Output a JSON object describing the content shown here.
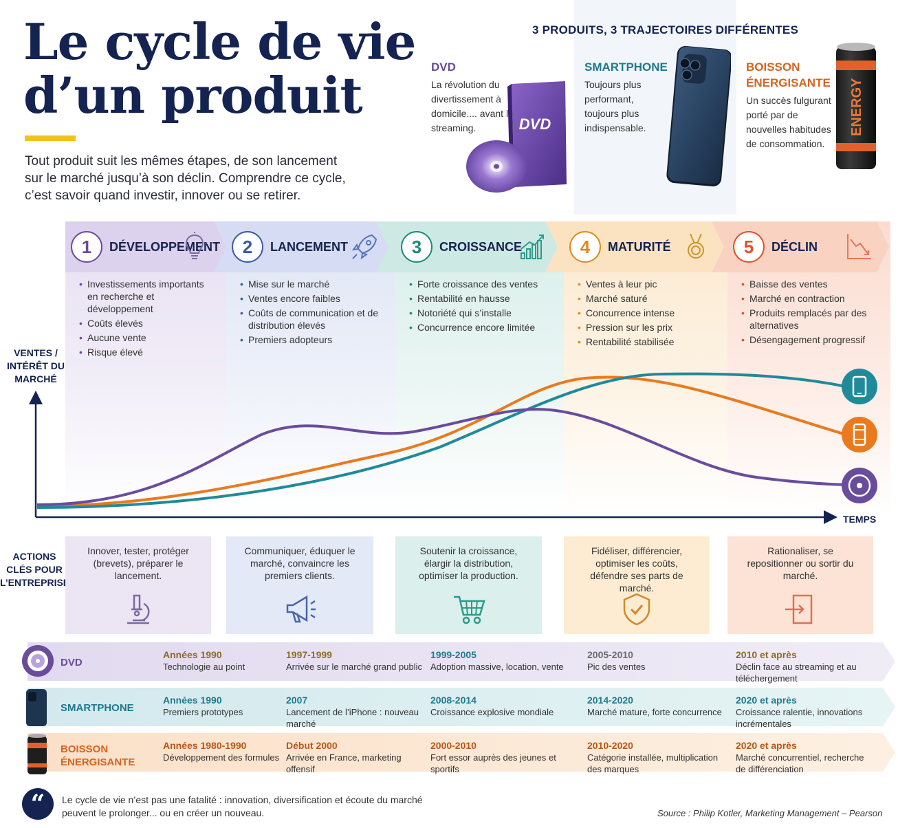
{
  "title": {
    "line1": "Le cycle de vie",
    "line2": "d’un produit"
  },
  "intro": "Tout produit suit les mêmes étapes, de son lancement sur le marché jusqu’à son déclin. Comprendre ce cycle, c’est savoir quand investir, innover ou se retirer.",
  "products": {
    "heading": "3 PRODUITS, 3 TRAJECTOIRES DIFFÉRENTES",
    "dvd": {
      "name": "DVD",
      "desc": "La révolution du divertissement à domicile.... avant le streaming.",
      "box_label": "DVD"
    },
    "smartphone": {
      "name": "SMARTPHONE",
      "desc": "Toujours plus performant, toujours plus indispensable."
    },
    "energy": {
      "name": "BOISSON ÉNERGISANTE",
      "desc": "Un succès fulgurant porté par de nouvelles habitudes de consommation.",
      "can_label": "ENERGY"
    }
  },
  "stages": [
    {
      "num": "1",
      "title": "DÉVELOPPEMENT",
      "icon": "lightbulb-icon",
      "color": "#6a4c9c",
      "bullets": [
        "Investissements importants en recherche et développement",
        "Coûts élevés",
        "Aucune vente",
        "Risque élevé"
      ]
    },
    {
      "num": "2",
      "title": "LANCEMENT",
      "icon": "rocket-icon",
      "color": "#3a5aa8",
      "bullets": [
        "Mise sur le marché",
        "Ventes encore faibles",
        "Coûts de communication et de distribution élevés",
        "Premiers adopteurs"
      ]
    },
    {
      "num": "3",
      "title": "CROISSANCE",
      "icon": "growth-chart-icon",
      "color": "#1f8a7a",
      "bullets": [
        "Forte croissance des ventes",
        "Rentabilité en hausse",
        "Notoriété qui s’installe",
        "Concurrence encore limitée"
      ]
    },
    {
      "num": "4",
      "title": "MATURITÉ",
      "icon": "medal-icon",
      "color": "#e08a1e",
      "bullets": [
        "Ventes à leur pic",
        "Marché saturé",
        "Concurrence intense",
        "Pression sur les prix",
        "Rentabilité stabilisée"
      ]
    },
    {
      "num": "5",
      "title": "DÉCLIN",
      "icon": "decline-chart-icon",
      "color": "#e0522a",
      "bullets": [
        "Baisse des ventes",
        "Marché en contraction",
        "Produits remplacés par des alternatives",
        "Désengagement progressif"
      ]
    }
  ],
  "chart": {
    "y_label": "VENTES / INTÉRÊT DU MARCHÉ",
    "x_label": "TEMPS",
    "series": [
      {
        "name": "DVD",
        "color": "#6a4c9c",
        "icon": "disc-icon"
      },
      {
        "name": "SMARTPHONE",
        "color": "#1f8a9a",
        "icon": "smartphone-icon"
      },
      {
        "name": "BOISSON ÉNERGISANTE",
        "color": "#ea7a1e",
        "icon": "can-icon"
      }
    ]
  },
  "actions": {
    "label": "ACTIONS CLÉS POUR L’ENTREPRISE",
    "items": [
      {
        "text": "Innover, tester, protéger (brevets), préparer le lancement.",
        "icon": "microscope-icon"
      },
      {
        "text": "Communiquer, éduquer le marché, convaincre les premiers clients.",
        "icon": "megaphone-icon"
      },
      {
        "text": "Soutenir la croissance, élargir la distribution, optimiser la production.",
        "icon": "cart-icon"
      },
      {
        "text": "Fidéliser, différencier, optimiser les coûts, défendre ses parts de marché.",
        "icon": "shield-icon"
      },
      {
        "text": "Rationaliser, se repositionner ou sortir du marché.",
        "icon": "exit-icon"
      }
    ]
  },
  "timeline": [
    {
      "name": "DVD",
      "color": "#6a4c9c",
      "cells": [
        {
          "year": "Années 1990",
          "text": "Technologie au point"
        },
        {
          "year": "1997-1999",
          "text": "Arrivée sur le marché grand public"
        },
        {
          "year": "1999-2005",
          "text": "Adoption massive, location, vente"
        },
        {
          "year": "2005-2010",
          "text": "Pic des ventes"
        },
        {
          "year": "2010 et après",
          "text": "Déclin face au streaming et au téléchergement"
        }
      ]
    },
    {
      "name": "SMARTPHONE",
      "color": "#1f7a8c",
      "cells": [
        {
          "year": "Années 1990",
          "text": "Premiers prototypes"
        },
        {
          "year": "2007",
          "text": "Lancement de l’iPhone : nouveau marché"
        },
        {
          "year": "2008-2014",
          "text": "Croissance explosive mondiale"
        },
        {
          "year": "2014-2020",
          "text": "Marché mature, forte concurrence"
        },
        {
          "year": "2020 et après",
          "text": "Croissance ralentie, innovations incrémentales"
        }
      ]
    },
    {
      "name": "BOISSON ÉNERGISANTE",
      "color": "#d8631e",
      "cells": [
        {
          "year": "Années 1980-1990",
          "text": "Développement des formules"
        },
        {
          "year": "Début 2000",
          "text": "Arrivée en France, marketing offensif"
        },
        {
          "year": "2000-2010",
          "text": "Fort essor auprès des jeunes et sportifs"
        },
        {
          "year": "2010-2020",
          "text": "Catégorie installée, multiplication des marques"
        },
        {
          "year": "2020 et après",
          "text": "Marché concurrentiel, recherche de différenciation"
        }
      ]
    }
  ],
  "quote": "Le cycle de vie n’est pas une fatalité : innovation, diversification et écoute du marché peuvent le prolonger... ou en créer un nouveau.",
  "source": "Source : Philip Kotler, Marketing Management – Pearson"
}
